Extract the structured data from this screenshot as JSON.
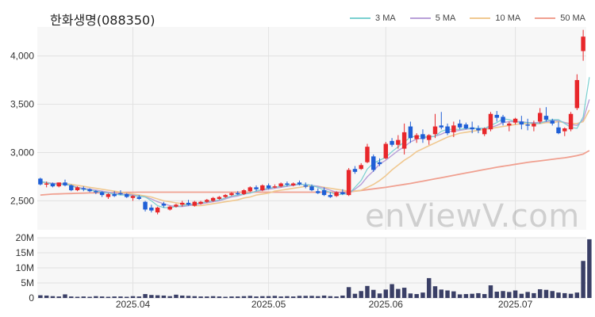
{
  "header": {
    "title": "한화생명(088350)",
    "watermark": "enViewV.com"
  },
  "legend": [
    {
      "label": "3 MA",
      "color": "#7ad0d0"
    },
    {
      "label": "5 MA",
      "color": "#b8a0d8"
    },
    {
      "label": "10 MA",
      "color": "#f0c890"
    },
    {
      "label": "50 MA",
      "color": "#f0a090"
    }
  ],
  "chart_data": [
    {
      "type": "candlestick",
      "title": "",
      "y_ticks": [
        "2,500",
        "3,000",
        "3,500",
        "4,000"
      ],
      "y_tick_values": [
        2500,
        3000,
        3500,
        4000
      ],
      "ylim": [
        2200,
        4300
      ],
      "x_labels": [
        "2025.04",
        "2025.05",
        "2025.06",
        "2025.07"
      ],
      "x_label_index": [
        15,
        37,
        56,
        77
      ],
      "grid": true,
      "up_color": "#e8272b",
      "down_color": "#1f5fd6",
      "candles": [
        [
          2730,
          2740,
          2660,
          2670
        ],
        [
          2670,
          2700,
          2640,
          2680
        ],
        [
          2680,
          2690,
          2640,
          2650
        ],
        [
          2650,
          2690,
          2640,
          2690
        ],
        [
          2690,
          2720,
          2650,
          2660
        ],
        [
          2660,
          2670,
          2600,
          2610
        ],
        [
          2610,
          2650,
          2600,
          2640
        ],
        [
          2630,
          2650,
          2600,
          2620
        ],
        [
          2620,
          2630,
          2590,
          2600
        ],
        [
          2600,
          2610,
          2570,
          2590
        ],
        [
          2590,
          2600,
          2540,
          2560
        ],
        [
          2540,
          2580,
          2520,
          2570
        ],
        [
          2570,
          2600,
          2540,
          2550
        ],
        [
          2580,
          2610,
          2560,
          2570
        ],
        [
          2570,
          2580,
          2530,
          2540
        ],
        [
          2530,
          2560,
          2500,
          2550
        ],
        [
          2540,
          2560,
          2510,
          2520
        ],
        [
          2490,
          2500,
          2390,
          2410
        ],
        [
          2430,
          2460,
          2380,
          2400
        ],
        [
          2380,
          2440,
          2360,
          2430
        ],
        [
          2470,
          2490,
          2430,
          2450
        ],
        [
          2410,
          2450,
          2400,
          2440
        ],
        [
          2440,
          2470,
          2430,
          2460
        ],
        [
          2460,
          2500,
          2440,
          2480
        ],
        [
          2480,
          2510,
          2450,
          2460
        ],
        [
          2450,
          2500,
          2440,
          2490
        ],
        [
          2470,
          2500,
          2460,
          2490
        ],
        [
          2490,
          2520,
          2480,
          2510
        ],
        [
          2500,
          2540,
          2490,
          2530
        ],
        [
          2520,
          2550,
          2510,
          2540
        ],
        [
          2540,
          2570,
          2530,
          2560
        ],
        [
          2560,
          2590,
          2550,
          2580
        ],
        [
          2580,
          2600,
          2560,
          2570
        ],
        [
          2570,
          2620,
          2560,
          2610
        ],
        [
          2600,
          2650,
          2590,
          2640
        ],
        [
          2640,
          2660,
          2600,
          2620
        ],
        [
          2610,
          2670,
          2600,
          2660
        ],
        [
          2660,
          2680,
          2620,
          2630
        ],
        [
          2640,
          2670,
          2630,
          2650
        ],
        [
          2650,
          2690,
          2640,
          2680
        ],
        [
          2680,
          2700,
          2650,
          2670
        ],
        [
          2660,
          2690,
          2650,
          2680
        ],
        [
          2690,
          2710,
          2660,
          2670
        ],
        [
          2660,
          2690,
          2630,
          2650
        ],
        [
          2650,
          2670,
          2600,
          2610
        ],
        [
          2600,
          2630,
          2570,
          2580
        ],
        [
          2610,
          2640,
          2550,
          2560
        ],
        [
          2560,
          2590,
          2530,
          2540
        ],
        [
          2550,
          2600,
          2540,
          2590
        ],
        [
          2590,
          2620,
          2560,
          2570
        ],
        [
          2560,
          2840,
          2550,
          2820
        ],
        [
          2830,
          2860,
          2780,
          2800
        ],
        [
          2830,
          2890,
          2820,
          2870
        ],
        [
          2900,
          3090,
          2890,
          3060
        ],
        [
          2960,
          2980,
          2800,
          2820
        ],
        [
          2900,
          2940,
          2860,
          2880
        ],
        [
          2940,
          3110,
          2930,
          3090
        ],
        [
          3120,
          3150,
          3060,
          3080
        ],
        [
          3080,
          3180,
          3040,
          3130
        ],
        [
          3040,
          3300,
          2980,
          3210
        ],
        [
          3270,
          3320,
          3100,
          3150
        ],
        [
          3140,
          3200,
          3100,
          3180
        ],
        [
          3190,
          3240,
          3100,
          3140
        ],
        [
          3130,
          3190,
          3080,
          3180
        ],
        [
          3190,
          3400,
          3150,
          3270
        ],
        [
          3280,
          3420,
          3240,
          3260
        ],
        [
          3270,
          3300,
          3180,
          3200
        ],
        [
          3210,
          3320,
          3160,
          3280
        ],
        [
          3300,
          3340,
          3240,
          3260
        ],
        [
          3290,
          3310,
          3240,
          3250
        ],
        [
          3260,
          3320,
          3200,
          3240
        ],
        [
          3250,
          3280,
          3200,
          3230
        ],
        [
          3190,
          3260,
          3170,
          3250
        ],
        [
          3240,
          3420,
          3220,
          3400
        ],
        [
          3390,
          3430,
          3320,
          3360
        ],
        [
          3370,
          3390,
          3280,
          3310
        ],
        [
          3280,
          3320,
          3220,
          3300
        ],
        [
          3310,
          3360,
          3290,
          3350
        ],
        [
          3320,
          3380,
          3240,
          3290
        ],
        [
          3290,
          3350,
          3230,
          3280
        ],
        [
          3270,
          3330,
          3220,
          3300
        ],
        [
          3320,
          3460,
          3300,
          3410
        ],
        [
          3380,
          3470,
          3320,
          3340
        ],
        [
          3330,
          3350,
          3280,
          3300
        ],
        [
          3260,
          3320,
          3190,
          3200
        ],
        [
          3220,
          3260,
          3170,
          3250
        ],
        [
          3240,
          3420,
          3220,
          3400
        ],
        [
          3460,
          3810,
          3440,
          3750
        ],
        [
          4050,
          4270,
          3950,
          4200
        ]
      ],
      "ma3": [
        2700,
        2690,
        2670,
        2670,
        2670,
        2660,
        2630,
        2620,
        2610,
        2600,
        2590,
        2580,
        2570,
        2560,
        2560,
        2550,
        2550,
        2540,
        2500,
        2450,
        2430,
        2430,
        2440,
        2450,
        2460,
        2470,
        2480,
        2490,
        2500,
        2510,
        2530,
        2550,
        2560,
        2570,
        2580,
        2600,
        2620,
        2630,
        2640,
        2650,
        2660,
        2670,
        2670,
        2670,
        2660,
        2640,
        2610,
        2590,
        2560,
        2570,
        2570,
        2640,
        2710,
        2830,
        2890,
        2920,
        2950,
        3010,
        3060,
        3110,
        3160,
        3170,
        3170,
        3160,
        3170,
        3220,
        3240,
        3240,
        3240,
        3250,
        3250,
        3250,
        3250,
        3280,
        3310,
        3350,
        3340,
        3320,
        3310,
        3310,
        3300,
        3300,
        3330,
        3340,
        3340,
        3300,
        3260,
        3250,
        3370,
        3780
      ],
      "ma5": [
        2700,
        2690,
        2680,
        2680,
        2670,
        2660,
        2640,
        2630,
        2620,
        2610,
        2600,
        2590,
        2580,
        2570,
        2570,
        2560,
        2550,
        2540,
        2520,
        2490,
        2470,
        2450,
        2440,
        2440,
        2450,
        2460,
        2470,
        2480,
        2490,
        2500,
        2520,
        2540,
        2550,
        2570,
        2580,
        2600,
        2610,
        2620,
        2630,
        2640,
        2650,
        2660,
        2670,
        2670,
        2660,
        2650,
        2630,
        2610,
        2590,
        2580,
        2580,
        2620,
        2670,
        2750,
        2810,
        2880,
        2920,
        2970,
        3020,
        3060,
        3110,
        3140,
        3150,
        3160,
        3170,
        3190,
        3220,
        3220,
        3230,
        3240,
        3250,
        3250,
        3250,
        3260,
        3280,
        3310,
        3320,
        3320,
        3320,
        3310,
        3310,
        3310,
        3320,
        3330,
        3330,
        3310,
        3290,
        3280,
        3340,
        3550
      ],
      "ma10": [
        2690,
        2690,
        2680,
        2680,
        2680,
        2670,
        2660,
        2650,
        2640,
        2630,
        2620,
        2610,
        2600,
        2590,
        2580,
        2570,
        2560,
        2550,
        2540,
        2520,
        2500,
        2490,
        2480,
        2470,
        2460,
        2450,
        2450,
        2460,
        2470,
        2480,
        2490,
        2500,
        2510,
        2530,
        2540,
        2560,
        2570,
        2580,
        2600,
        2610,
        2620,
        2630,
        2640,
        2650,
        2650,
        2650,
        2640,
        2630,
        2620,
        2610,
        2600,
        2600,
        2610,
        2640,
        2670,
        2710,
        2760,
        2820,
        2870,
        2920,
        2960,
        3010,
        3040,
        3070,
        3100,
        3130,
        3160,
        3180,
        3200,
        3210,
        3220,
        3230,
        3240,
        3250,
        3260,
        3270,
        3280,
        3290,
        3300,
        3300,
        3300,
        3300,
        3310,
        3310,
        3320,
        3310,
        3300,
        3300,
        3320,
        3440
      ],
      "ma50": [
        2560,
        2565,
        2570,
        2572,
        2574,
        2576,
        2578,
        2580,
        2582,
        2583,
        2584,
        2585,
        2586,
        2587,
        2588,
        2589,
        2590,
        2590,
        2590,
        2590,
        2590,
        2590,
        2590,
        2590,
        2590,
        2590,
        2590,
        2590,
        2590,
        2590,
        2590,
        2590,
        2590,
        2590,
        2590,
        2590,
        2590,
        2590,
        2590,
        2590,
        2590,
        2590,
        2590,
        2590,
        2590,
        2590,
        2590,
        2590,
        2590,
        2590,
        2593,
        2600,
        2608,
        2616,
        2624,
        2632,
        2640,
        2650,
        2660,
        2670,
        2680,
        2692,
        2704,
        2716,
        2728,
        2740,
        2752,
        2764,
        2776,
        2788,
        2800,
        2812,
        2824,
        2836,
        2848,
        2858,
        2868,
        2878,
        2888,
        2898,
        2906,
        2914,
        2922,
        2930,
        2938,
        2946,
        2956,
        2968,
        2984,
        3020
      ],
      "volume_ticks": [
        "0",
        "5M",
        "10M",
        "15M",
        "20M"
      ],
      "volume_tick_values": [
        0,
        5,
        10,
        15,
        20
      ],
      "volume_unit": "M",
      "volume_color": "#3a3f66",
      "volume": [
        0.9,
        0.8,
        0.6,
        0.5,
        1.2,
        0.5,
        0.4,
        0.5,
        0.4,
        0.6,
        0.5,
        0.4,
        0.5,
        0.5,
        0.4,
        0.6,
        0.5,
        1.3,
        1.0,
        0.9,
        0.8,
        0.6,
        1.1,
        0.8,
        0.7,
        0.6,
        0.5,
        0.5,
        0.6,
        0.5,
        0.4,
        0.5,
        0.5,
        0.6,
        0.7,
        0.5,
        0.6,
        0.6,
        0.7,
        0.5,
        0.6,
        0.5,
        0.7,
        0.7,
        0.7,
        0.6,
        0.8,
        0.6,
        0.5,
        0.8,
        3.6,
        1.4,
        2.3,
        4.0,
        2.7,
        1.5,
        2.8,
        4.6,
        3.0,
        3.4,
        1.5,
        1.3,
        1.8,
        6.6,
        3.9,
        2.8,
        2.5,
        2.2,
        1.2,
        1.3,
        1.4,
        1.6,
        1.3,
        4.2,
        2.1,
        2.3,
        2.0,
        2.5,
        1.4,
        2.0,
        1.6,
        2.9,
        2.7,
        2.3,
        1.8,
        1.6,
        1.4,
        1.8,
        12.3,
        19.5
      ]
    }
  ]
}
